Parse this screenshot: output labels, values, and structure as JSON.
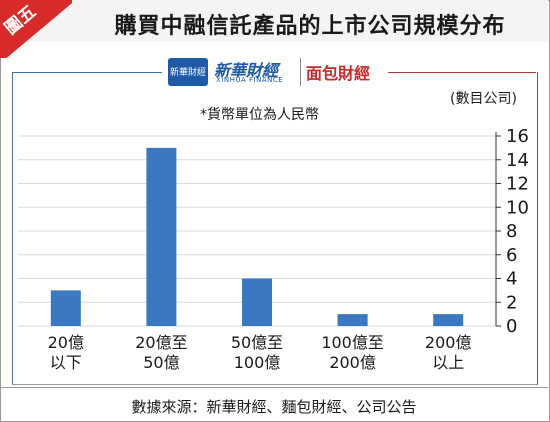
{
  "badge": "圖五",
  "header": {
    "title": "購買中融信託產品的上市公司規模分布"
  },
  "logos": {
    "box_text": "新華財經",
    "xinhua": "新華財經",
    "xinhua_sub": "XINHUA FINANCE",
    "mianbao": "面包財經"
  },
  "unit_label": "(數目公司)",
  "note": "*貨幣單位為人民幣",
  "source": "數據來源：新華財經、麵包財經、公司公告",
  "colors": {
    "bar": "#3a78c2",
    "badge": "#d92a2a",
    "grid": "#d9d9d9"
  },
  "chart_data": {
    "type": "bar",
    "title": "購買中融信託產品的上市公司規模分布",
    "ylabel": "(數目公司)",
    "categories": [
      [
        "20億",
        "以下"
      ],
      [
        "20億至",
        "50億"
      ],
      [
        "50億至",
        "100億"
      ],
      [
        "100億至",
        "200億"
      ],
      [
        "200億",
        "以上"
      ]
    ],
    "values": [
      3,
      15,
      4,
      1,
      1
    ],
    "ylim": [
      0,
      16
    ],
    "yticks": [
      0,
      2,
      4,
      6,
      8,
      10,
      12,
      14,
      16
    ],
    "y_axis_side": "right",
    "grid": true
  }
}
